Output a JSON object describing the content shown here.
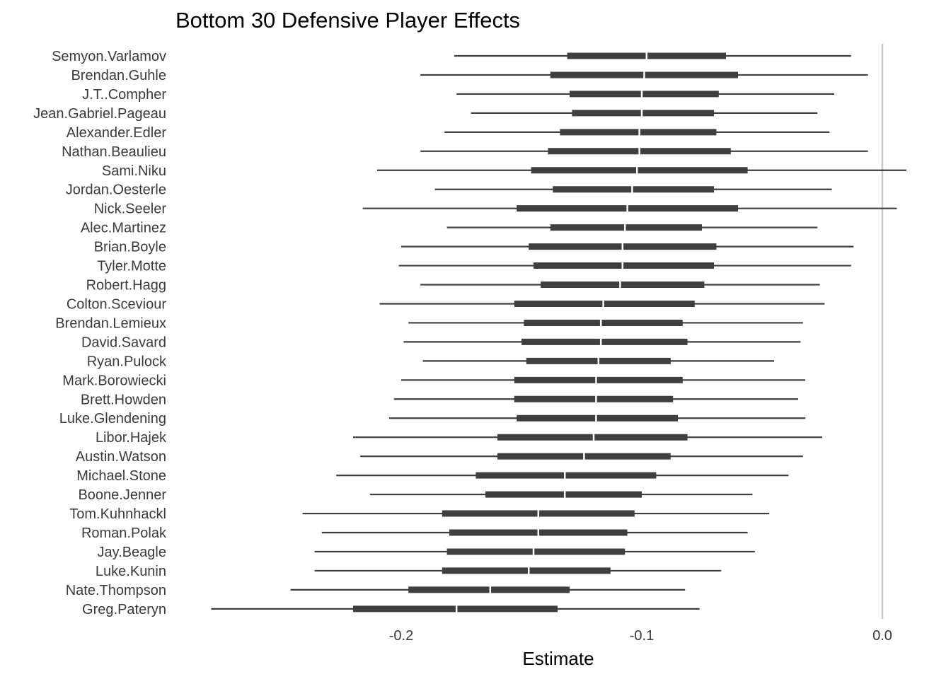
{
  "chart_data": {
    "type": "interval",
    "title": "Bottom 30 Defensive Player Effects",
    "xlabel": "Estimate",
    "ylabel": "",
    "xlim": [
      -0.279,
      0.01
    ],
    "x_ticks": [
      -0.2,
      -0.1,
      0.0
    ],
    "x_tick_labels": [
      "-0.2",
      "-0.1",
      "0.0"
    ],
    "reference_line_x": 0.0,
    "grid": false,
    "legend": "none",
    "colors": {
      "interval": "#3f3f3f",
      "point_gap": "#ffffff",
      "reference": "#c8c8c8"
    },
    "players": [
      {
        "name": "Semyon.Varlamov",
        "lo": -0.178,
        "q1": -0.131,
        "est": -0.098,
        "q3": -0.065,
        "hi": -0.013
      },
      {
        "name": "Brendan.Guhle",
        "lo": -0.192,
        "q1": -0.138,
        "est": -0.099,
        "q3": -0.06,
        "hi": -0.006
      },
      {
        "name": "J.T..Compher",
        "lo": -0.177,
        "q1": -0.13,
        "est": -0.1,
        "q3": -0.068,
        "hi": -0.02
      },
      {
        "name": "Jean.Gabriel.Pageau",
        "lo": -0.171,
        "q1": -0.129,
        "est": -0.1,
        "q3": -0.07,
        "hi": -0.027
      },
      {
        "name": "Alexander.Edler",
        "lo": -0.182,
        "q1": -0.134,
        "est": -0.101,
        "q3": -0.069,
        "hi": -0.022
      },
      {
        "name": "Nathan.Beaulieu",
        "lo": -0.192,
        "q1": -0.139,
        "est": -0.101,
        "q3": -0.063,
        "hi": -0.006
      },
      {
        "name": "Sami.Niku",
        "lo": -0.21,
        "q1": -0.146,
        "est": -0.102,
        "q3": -0.056,
        "hi": 0.01
      },
      {
        "name": "Jordan.Oesterle",
        "lo": -0.186,
        "q1": -0.137,
        "est": -0.104,
        "q3": -0.07,
        "hi": -0.021
      },
      {
        "name": "Nick.Seeler",
        "lo": -0.216,
        "q1": -0.152,
        "est": -0.106,
        "q3": -0.06,
        "hi": 0.006
      },
      {
        "name": "Alec.Martinez",
        "lo": -0.181,
        "q1": -0.138,
        "est": -0.107,
        "q3": -0.075,
        "hi": -0.027
      },
      {
        "name": "Brian.Boyle",
        "lo": -0.2,
        "q1": -0.147,
        "est": -0.108,
        "q3": -0.069,
        "hi": -0.012
      },
      {
        "name": "Tyler.Motte",
        "lo": -0.201,
        "q1": -0.145,
        "est": -0.108,
        "q3": -0.07,
        "hi": -0.013
      },
      {
        "name": "Robert.Hagg",
        "lo": -0.192,
        "q1": -0.142,
        "est": -0.109,
        "q3": -0.074,
        "hi": -0.026
      },
      {
        "name": "Colton.Sceviour",
        "lo": -0.209,
        "q1": -0.153,
        "est": -0.116,
        "q3": -0.078,
        "hi": -0.024
      },
      {
        "name": "Brendan.Lemieux",
        "lo": -0.197,
        "q1": -0.149,
        "est": -0.117,
        "q3": -0.083,
        "hi": -0.033
      },
      {
        "name": "David.Savard",
        "lo": -0.199,
        "q1": -0.15,
        "est": -0.117,
        "q3": -0.081,
        "hi": -0.034
      },
      {
        "name": "Ryan.Pulock",
        "lo": -0.191,
        "q1": -0.148,
        "est": -0.118,
        "q3": -0.088,
        "hi": -0.045
      },
      {
        "name": "Mark.Borowiecki",
        "lo": -0.2,
        "q1": -0.153,
        "est": -0.119,
        "q3": -0.083,
        "hi": -0.032
      },
      {
        "name": "Brett.Howden",
        "lo": -0.203,
        "q1": -0.153,
        "est": -0.119,
        "q3": -0.087,
        "hi": -0.035
      },
      {
        "name": "Luke.Glendening",
        "lo": -0.205,
        "q1": -0.152,
        "est": -0.119,
        "q3": -0.085,
        "hi": -0.032
      },
      {
        "name": "Libor.Hajek",
        "lo": -0.22,
        "q1": -0.16,
        "est": -0.12,
        "q3": -0.081,
        "hi": -0.025
      },
      {
        "name": "Austin.Watson",
        "lo": -0.217,
        "q1": -0.16,
        "est": -0.124,
        "q3": -0.088,
        "hi": -0.033
      },
      {
        "name": "Michael.Stone",
        "lo": -0.227,
        "q1": -0.169,
        "est": -0.132,
        "q3": -0.094,
        "hi": -0.039
      },
      {
        "name": "Boone.Jenner",
        "lo": -0.213,
        "q1": -0.165,
        "est": -0.132,
        "q3": -0.1,
        "hi": -0.054
      },
      {
        "name": "Tom.Kuhnhackl",
        "lo": -0.241,
        "q1": -0.183,
        "est": -0.143,
        "q3": -0.103,
        "hi": -0.047
      },
      {
        "name": "Roman.Polak",
        "lo": -0.233,
        "q1": -0.18,
        "est": -0.143,
        "q3": -0.106,
        "hi": -0.056
      },
      {
        "name": "Jay.Beagle",
        "lo": -0.236,
        "q1": -0.181,
        "est": -0.145,
        "q3": -0.107,
        "hi": -0.053
      },
      {
        "name": "Luke.Kunin",
        "lo": -0.236,
        "q1": -0.183,
        "est": -0.147,
        "q3": -0.113,
        "hi": -0.067
      },
      {
        "name": "Nate.Thompson",
        "lo": -0.246,
        "q1": -0.197,
        "est": -0.163,
        "q3": -0.13,
        "hi": -0.082
      },
      {
        "name": "Greg.Pateryn",
        "lo": -0.279,
        "q1": -0.22,
        "est": -0.177,
        "q3": -0.135,
        "hi": -0.076
      }
    ]
  }
}
